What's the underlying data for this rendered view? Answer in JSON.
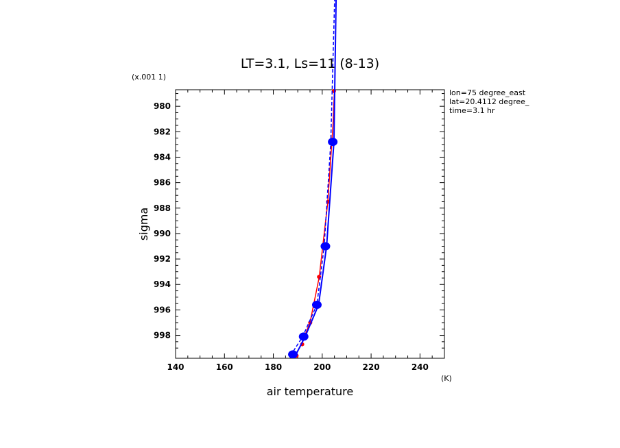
{
  "chart_data": {
    "type": "line",
    "title": "LT=3.1, Ls=11 (8-13)",
    "xlabel": "air temperature",
    "xunit": "(K)",
    "ylabel": "sigma",
    "yscale_note": "(x.001 1)",
    "xlim": [
      140,
      250
    ],
    "ylim": [
      999.8,
      978.7
    ],
    "x_ticks": [
      140,
      160,
      180,
      200,
      220,
      240
    ],
    "y_ticks": [
      980,
      982,
      984,
      986,
      988,
      990,
      992,
      994,
      996,
      998
    ],
    "y_tick_labels": [
      "980",
      "982",
      "984",
      "986",
      "988",
      "990",
      "992",
      "994",
      "996",
      "998"
    ],
    "grid": false,
    "info_lines": [
      "lon=75 degree_east",
      "lat=20.4112 degree_",
      "time=3.1 hr"
    ],
    "colors": {
      "red": "#ff0000",
      "blue": "#0000ff"
    },
    "series": [
      {
        "style": "red-solid-line-with-small-markers",
        "color": "#ff0000",
        "points": [
          [
            188.3,
            999.8
          ],
          [
            191.2,
            998.8
          ],
          [
            195.0,
            997.0
          ],
          [
            198.8,
            993.4
          ],
          [
            202.3,
            987.5
          ],
          [
            204.4,
            981.5
          ],
          [
            205.0,
            978.7
          ]
        ],
        "markers": [
          [
            189.5,
            999.6
          ],
          [
            191.8,
            998.7
          ],
          [
            195.1,
            997.0
          ],
          [
            198.7,
            993.4
          ],
          [
            202.4,
            987.5
          ],
          [
            204.8,
            978.8
          ]
        ]
      },
      {
        "style": "blue-dashed-line",
        "color": "#0000ff",
        "dashed": true,
        "points": [
          [
            187.0,
            999.6
          ],
          [
            192.0,
            998.1
          ],
          [
            197.8,
            995.6
          ],
          [
            200.8,
            991.0
          ],
          [
            203.5,
            982.8
          ],
          [
            205.3,
            970.0
          ]
        ]
      },
      {
        "style": "blue-solid-line-with-large-markers",
        "color": "#0000ff",
        "points": [
          [
            189.0,
            999.6
          ],
          [
            193.0,
            998.1
          ],
          [
            198.5,
            995.6
          ],
          [
            201.8,
            991.0
          ],
          [
            204.8,
            982.8
          ],
          [
            205.8,
            970.0
          ]
        ],
        "markers": [
          [
            188.0,
            999.5
          ],
          [
            192.4,
            998.1
          ],
          [
            197.8,
            995.6
          ],
          [
            201.3,
            991.0
          ],
          [
            204.3,
            982.8
          ]
        ]
      }
    ]
  }
}
